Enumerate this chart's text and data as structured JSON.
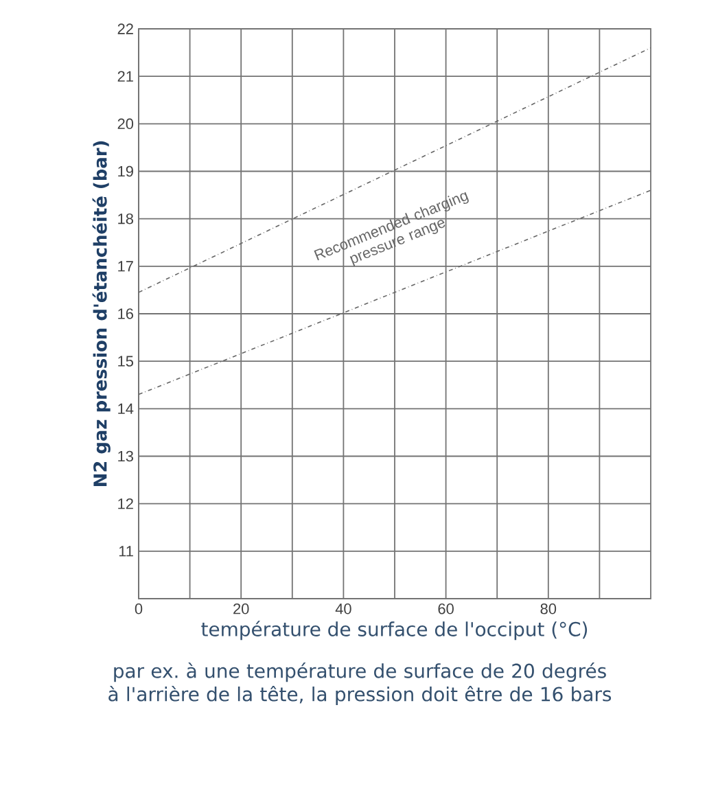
{
  "chart_data": {
    "type": "line",
    "xlabel": "température de surface de l'occiput (°C)",
    "ylabel": "N2 gaz pression d'étanchéité (bar)",
    "x": [
      0,
      100
    ],
    "series": [
      {
        "color": "#666666",
        "values": [
          16.45,
          21.6
        ]
      },
      {
        "color": "#666666",
        "values": [
          14.3,
          18.6
        ]
      }
    ],
    "xlim": [
      0,
      100
    ],
    "ylim": [
      10,
      22
    ],
    "xticks": [
      0,
      {
        "value": 10,
        "label": null
      },
      20,
      {
        "value": 30,
        "label": null
      },
      40,
      {
        "value": 50,
        "label": null
      },
      60,
      {
        "value": 70,
        "label": null
      },
      80,
      {
        "value": 90,
        "label": null
      }
    ],
    "yticks": [
      11,
      12,
      13,
      14,
      15,
      16,
      17,
      18,
      19,
      20,
      21,
      22
    ],
    "grid": true,
    "marker": "none",
    "line_style": "dashed",
    "annotations": [
      "Recommended charging pressure range",
      "par ex. à une température de surface de 20 degrés à l'arrière de la tête, la pression doit être de 16 bars"
    ]
  }
}
